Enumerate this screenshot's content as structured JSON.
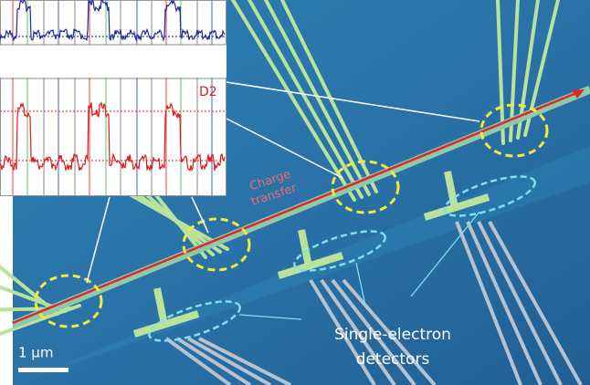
{
  "inset": {
    "trace_label": "D2"
  },
  "annotations": {
    "charge_transfer": [
      "Charge",
      "transfer"
    ],
    "detectors": [
      "Single-electron",
      "detectors"
    ]
  },
  "scale_bar": "1 µm"
}
